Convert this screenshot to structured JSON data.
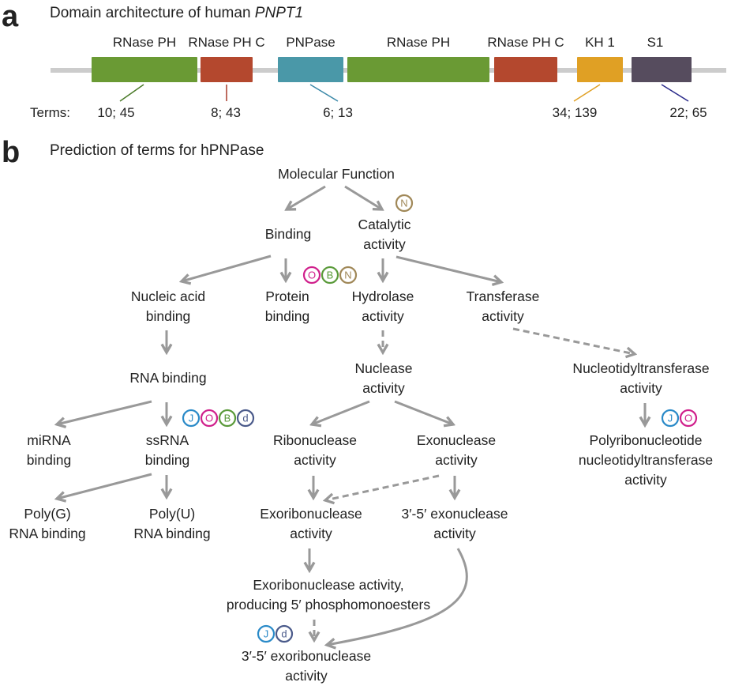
{
  "panel_a": {
    "letter": "a",
    "title_prefix": "Domain architecture of human ",
    "title_gene": "PNPT1",
    "terms_label": "Terms:",
    "domains": [
      {
        "label": "RNase PH",
        "color": "#6a9a34"
      },
      {
        "label": "RNase PH C",
        "color": "#b4482e"
      },
      {
        "label": "PNPase",
        "color": "#4a98a8"
      },
      {
        "label": "RNase PH",
        "color": "#6a9a34"
      },
      {
        "label": "RNase PH C",
        "color": "#b4482e"
      },
      {
        "label": "KH 1",
        "color": "#e0a024"
      },
      {
        "label": "S1",
        "color": "#564c5e"
      }
    ],
    "term_counts": [
      "10; 45",
      "8; 43",
      "6; 13",
      "34; 139",
      "22; 65"
    ]
  },
  "panel_b": {
    "letter": "b",
    "title": "Prediction of terms for hPNPase",
    "nodes": {
      "molecular_function": [
        "Molecular Function"
      ],
      "binding": [
        "Binding"
      ],
      "catalytic": [
        "Catalytic",
        "activity"
      ],
      "nucleic_acid_binding": [
        "Nucleic acid",
        "binding"
      ],
      "protein_binding": [
        "Protein",
        "binding"
      ],
      "hydrolase": [
        "Hydrolase",
        "activity"
      ],
      "transferase": [
        "Transferase",
        "activity"
      ],
      "rna_binding": [
        "RNA binding"
      ],
      "nuclease": [
        "Nuclease",
        "activity"
      ],
      "nucleotidyltransferase": [
        "Nucleotidyltransferase",
        "activity"
      ],
      "mirna_binding": [
        "miRNA",
        "binding"
      ],
      "ssrna_binding": [
        "ssRNA",
        "binding"
      ],
      "ribonuclease": [
        "Ribonuclease",
        "activity"
      ],
      "exonuclease": [
        "Exonuclease",
        "activity"
      ],
      "polyribonucleotide": [
        "Polyribonucleotide",
        "nucleotidyltransferase",
        "activity"
      ],
      "polyg": [
        "Poly(G)",
        "RNA binding"
      ],
      "polyu": [
        "Poly(U)",
        "RNA binding"
      ],
      "exoribonuclease": [
        "Exoribonuclease",
        "activity"
      ],
      "exonuclease_35": [
        "3′-5′ exonuclease",
        "activity"
      ],
      "exoribo_5p": [
        "Exoribonuclease activity,",
        "producing 5′ phosphomonoesters"
      ],
      "exoribo_35": [
        "3′-5′ exoribonuclease",
        "activity"
      ]
    },
    "badge_colors": {
      "N": "#a08858",
      "O": "#d0208c",
      "B": "#5a9a3a",
      "J": "#2a8ac8",
      "d": "#4a5a8a"
    },
    "badge_groups": {
      "catalytic": [
        "N"
      ],
      "protein_binding": [
        "O",
        "B",
        "N"
      ],
      "ssrna_binding": [
        "J",
        "O",
        "B",
        "d"
      ],
      "polyribonucleotide": [
        "J",
        "O"
      ],
      "exoribo_35": [
        "J",
        "d"
      ]
    }
  }
}
